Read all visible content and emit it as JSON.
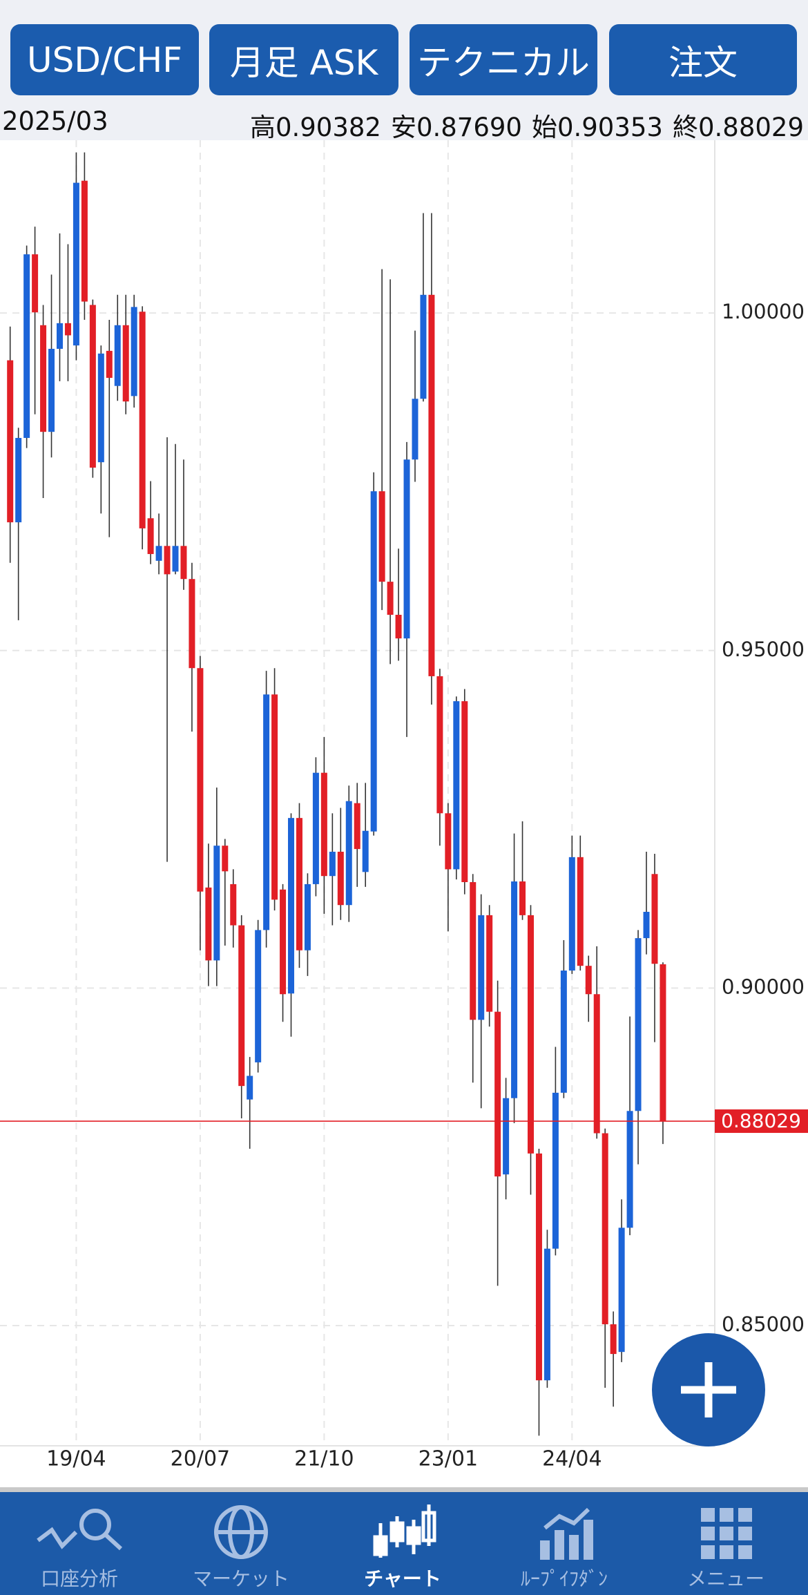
{
  "buttons": [
    "USD/CHF",
    "月足 ASK",
    "テクニカル",
    "注文"
  ],
  "info": [
    {
      "label": "高",
      "value": "0.90382"
    },
    {
      "label": "安",
      "value": "0.87690"
    },
    {
      "label": "始",
      "value": "0.90353"
    },
    {
      "label": "終",
      "value": "0.88029"
    }
  ],
  "chart_data": {
    "type": "candlestick",
    "categories": [
      "2018/08",
      "2018/09",
      "2018/10",
      "2018/11",
      "2018/12",
      "2019/01",
      "2019/02",
      "2019/03",
      "2019/04",
      "2019/05",
      "2019/06",
      "2019/07",
      "2019/08",
      "2019/09",
      "2019/10",
      "2019/11",
      "2019/12",
      "2020/01",
      "2020/02",
      "2020/03",
      "2020/04",
      "2020/05",
      "2020/06",
      "2020/07",
      "2020/08",
      "2020/09",
      "2020/10",
      "2020/11",
      "2020/12",
      "2021/01",
      "2021/02",
      "2021/03",
      "2021/04",
      "2021/05",
      "2021/06",
      "2021/07",
      "2021/08",
      "2021/09",
      "2021/10",
      "2021/11",
      "2021/12",
      "2022/01",
      "2022/02",
      "2022/03",
      "2022/04",
      "2022/05",
      "2022/06",
      "2022/07",
      "2022/08",
      "2022/09",
      "2022/10",
      "2022/11",
      "2022/12",
      "2023/01",
      "2023/02",
      "2023/03",
      "2023/04",
      "2023/05",
      "2023/06",
      "2023/07",
      "2023/08",
      "2023/09",
      "2023/10",
      "2023/11",
      "2023/12",
      "2024/01",
      "2024/02",
      "2024/03",
      "2024/04",
      "2024/05",
      "2024/06",
      "2024/07",
      "2024/08",
      "2024/09",
      "2024/10",
      "2024/11",
      "2024/12",
      "2025/01",
      "2025/02",
      "2025/03"
    ],
    "open": [
      0.993,
      0.969,
      0.9815,
      1.0087,
      0.9982,
      0.9824,
      0.9947,
      0.9985,
      0.9952,
      1.0196,
      1.0012,
      0.9779,
      0.9944,
      0.9892,
      0.9982,
      0.9877,
      1.0002,
      0.9696,
      0.9633,
      0.9655,
      0.9617,
      0.9655,
      0.9606,
      0.9474,
      0.9149,
      0.9041,
      0.9211,
      0.9154,
      0.9093,
      0.8835,
      0.889,
      0.9086,
      0.9435,
      0.9146,
      0.8992,
      0.9252,
      0.9056,
      0.9154,
      0.9319,
      0.9166,
      0.9202,
      0.9123,
      0.9274,
      0.9172,
      0.9232,
      0.9736,
      0.9602,
      0.9553,
      0.9518,
      0.9783,
      0.9873,
      1.0027,
      0.9462,
      0.9259,
      0.9176,
      0.9425,
      0.9157,
      0.8953,
      0.9108,
      0.8965,
      0.8724,
      0.8837,
      0.9158,
      0.9108,
      0.8755,
      0.8419,
      0.8614,
      0.8845,
      0.9026,
      0.9194,
      0.9033,
      0.8991,
      0.8785,
      0.8502,
      0.8461,
      0.8645,
      0.8818,
      0.9074,
      0.9169,
      0.90353
    ],
    "high": [
      0.998,
      0.983,
      1.01,
      1.0128,
      1.0012,
      1.0057,
      1.0118,
      1.0102,
      1.0238,
      1.0238,
      1.002,
      0.9952,
      0.999,
      1.0027,
      1.0027,
      1.0027,
      1.001,
      0.9751,
      0.9703,
      0.9816,
      0.9806,
      0.9783,
      0.963,
      0.9492,
      0.9214,
      0.9297,
      0.9221,
      0.9176,
      0.9108,
      0.8898,
      0.9101,
      0.947,
      0.9474,
      0.9154,
      0.9259,
      0.9274,
      0.917,
      0.9342,
      0.9372,
      0.9259,
      0.9267,
      0.93,
      0.9304,
      0.9304,
      0.9764,
      1.0065,
      1.005,
      0.9651,
      0.9809,
      0.9974,
      1.0148,
      1.0148,
      0.9473,
      0.9274,
      0.9432,
      0.9443,
      0.9169,
      0.9139,
      0.9123,
      0.9011,
      0.8867,
      0.9229,
      0.9247,
      0.9123,
      0.8762,
      0.8642,
      0.8913,
      0.9071,
      0.9226,
      0.9226,
      0.9048,
      0.9062,
      0.8792,
      0.8521,
      0.8687,
      0.8958,
      0.9086,
      0.9202,
      0.9199,
      0.90382
    ],
    "low": [
      0.963,
      0.9545,
      0.98,
      0.985,
      0.9726,
      0.9786,
      0.9899,
      0.9899,
      0.993,
      0.999,
      0.9756,
      0.9703,
      0.9668,
      0.987,
      0.985,
      0.986,
      0.965,
      0.9628,
      0.9613,
      0.9187,
      0.9613,
      0.959,
      0.938,
      0.9056,
      0.9003,
      0.9003,
      0.9063,
      0.906,
      0.8807,
      0.8762,
      0.8875,
      0.906,
      0.9115,
      0.895,
      0.8928,
      0.903,
      0.9018,
      0.9136,
      0.911,
      0.9093,
      0.9101,
      0.9098,
      0.915,
      0.915,
      0.9226,
      0.956,
      0.948,
      0.9485,
      0.9372,
      0.975,
      0.9869,
      0.942,
      0.9211,
      0.9084,
      0.9161,
      0.9139,
      0.886,
      0.8822,
      0.8943,
      0.8559,
      0.8687,
      0.88,
      0.9101,
      0.8694,
      0.8337,
      0.8408,
      0.8604,
      0.8837,
      0.9021,
      0.9026,
      0.895,
      0.8777,
      0.8408,
      0.838,
      0.8446,
      0.8634,
      0.8739,
      0.905,
      0.892,
      0.8769
    ],
    "close": [
      0.969,
      0.9815,
      1.0087,
      1.0001,
      0.9824,
      0.9947,
      0.9985,
      0.9967,
      1.0193,
      1.0017,
      0.9771,
      0.994,
      0.9904,
      0.9982,
      0.9869,
      1.0009,
      0.9681,
      0.9643,
      0.9655,
      0.9613,
      0.9655,
      0.9606,
      0.9474,
      0.9143,
      0.9041,
      0.9211,
      0.9173,
      0.9093,
      0.8855,
      0.887,
      0.9086,
      0.9435,
      0.9131,
      0.8991,
      0.9252,
      0.9056,
      0.9154,
      0.9319,
      0.9166,
      0.9202,
      0.9123,
      0.9277,
      0.9206,
      0.9233,
      0.9736,
      0.9602,
      0.9553,
      0.9518,
      0.9783,
      0.9873,
      1.0027,
      0.9462,
      0.9259,
      0.9176,
      0.9425,
      0.9157,
      0.8953,
      0.9108,
      0.8965,
      0.8721,
      0.8837,
      0.9158,
      0.9108,
      0.8755,
      0.8419,
      0.8614,
      0.8845,
      0.9026,
      0.9194,
      0.9033,
      0.8991,
      0.8785,
      0.8502,
      0.8458,
      0.8645,
      0.8818,
      0.9074,
      0.9113,
      0.9036,
      0.88029
    ],
    "up_color": "#1c64d8",
    "down_color": "#e21f26",
    "ylim": [
      0.8322,
      1.0256
    ],
    "yticks": [
      {
        "value": 1,
        "label": "1.00000"
      },
      {
        "value": 0.95,
        "label": "0.95000"
      },
      {
        "value": 0.9,
        "label": "0.90000"
      },
      {
        "value": 0.85,
        "label": "0.85000"
      }
    ],
    "xticks": [
      {
        "value": "2019/04",
        "label": "19/04"
      },
      {
        "value": "2020/07",
        "label": "20/07"
      },
      {
        "value": "2021/10",
        "label": "21/10"
      },
      {
        "value": "2023/01",
        "label": "23/01"
      },
      {
        "value": "2024/04",
        "label": "24/04"
      }
    ],
    "grid": true
  },
  "nav": [
    {
      "label": "口座分析",
      "active": false
    },
    {
      "label": "マーケット",
      "active": false
    },
    {
      "label": "チャート",
      "active": true
    },
    {
      "label": "ﾙｰﾌﾟｲﾌﾀﾞﾝ",
      "active": false
    },
    {
      "label": "メニュー",
      "active": false
    }
  ]
}
